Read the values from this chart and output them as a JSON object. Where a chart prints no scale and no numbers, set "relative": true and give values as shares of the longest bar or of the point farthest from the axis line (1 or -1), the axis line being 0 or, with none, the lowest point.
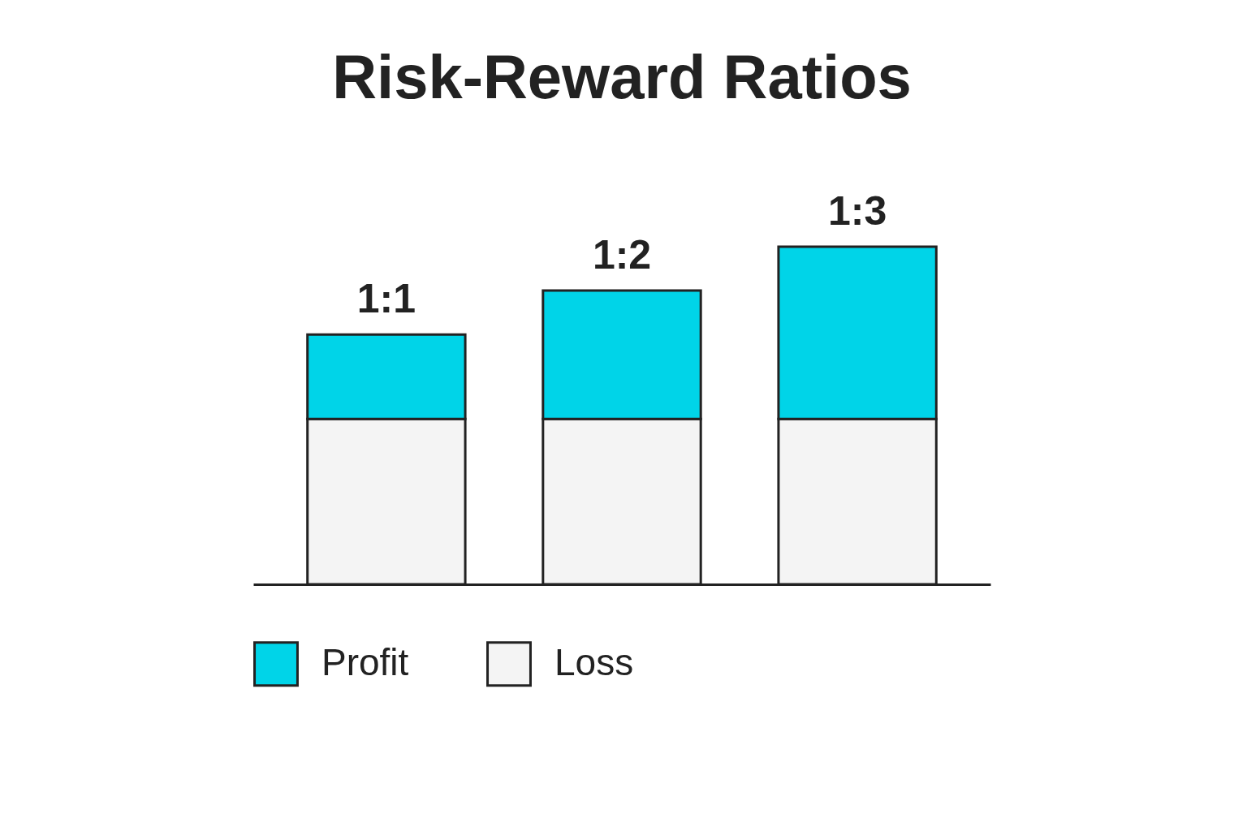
{
  "chart_data": {
    "type": "bar",
    "title": "Risk-Reward Ratios",
    "categories": [
      "1:1",
      "1:2",
      "1:3"
    ],
    "relative": true,
    "stacked": true,
    "legend": "bottom",
    "series": [
      {
        "name": "Loss",
        "color": "#f4f4f4",
        "values": [
          0.49,
          0.49,
          0.49
        ]
      },
      {
        "name": "Profit",
        "color": "#00d4e8",
        "values": [
          0.25,
          0.38,
          0.51
        ]
      }
    ]
  }
}
